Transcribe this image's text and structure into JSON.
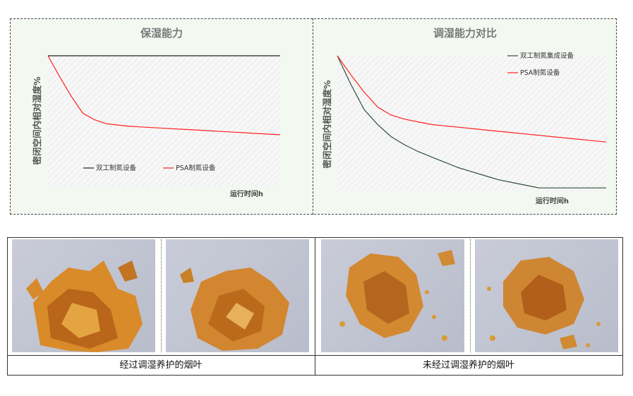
{
  "chart_data": [
    {
      "type": "line",
      "title": "保湿能力",
      "ylabel": "密闭空间内相对湿度%",
      "xlabel": "运行时间h",
      "ylim": [
        0,
        100
      ],
      "x": [
        0,
        1,
        2,
        3,
        4,
        5,
        6,
        7,
        8,
        9,
        10,
        11,
        12,
        13,
        14,
        15,
        16,
        17,
        18,
        19,
        20
      ],
      "series": [
        {
          "name": "双工制氮设备",
          "color": "#222222",
          "values": [
            100,
            100,
            100,
            100,
            100,
            100,
            100,
            100,
            100,
            100,
            100,
            100,
            100,
            100,
            100,
            100,
            100,
            100,
            100,
            100,
            100
          ]
        },
        {
          "name": "PSA制氮设备",
          "color": "#ff2020",
          "values": [
            100,
            84,
            69,
            56,
            51,
            48,
            47,
            46,
            45.5,
            45,
            44.5,
            44,
            43.5,
            43,
            42.5,
            42,
            41.5,
            41,
            40.5,
            40,
            39.5
          ]
        }
      ],
      "legend": "bottom-left",
      "grid": true
    },
    {
      "type": "line",
      "title": "调湿能力对比",
      "ylabel": "密闭空间内相对湿度%",
      "xlabel": "运行时间h",
      "ylim": [
        0,
        100
      ],
      "x": [
        0,
        1,
        2,
        3,
        4,
        5,
        6,
        7,
        8,
        9,
        10,
        11,
        12,
        13,
        14,
        15,
        16,
        17,
        18,
        19,
        20
      ],
      "series": [
        {
          "name": "双工制氮集成设备",
          "color": "#2f4f3f",
          "values": [
            100,
            79,
            60,
            49,
            40,
            34,
            29,
            25,
            21,
            17,
            14,
            11,
            8,
            6,
            4,
            2,
            2,
            2,
            2,
            2,
            2
          ]
        },
        {
          "name": "PSA制氮设备",
          "color": "#ff2020",
          "values": [
            100,
            86,
            73,
            62,
            56,
            53,
            51,
            49,
            48,
            47,
            46,
            45,
            44,
            43,
            42,
            41,
            40,
            39,
            38,
            37,
            36
          ]
        }
      ],
      "legend": "top-right",
      "grid": true
    }
  ],
  "photos": {
    "caption_treated": "经过调湿养护的烟叶",
    "caption_untreated": "未经过调湿养护的烟叶"
  }
}
